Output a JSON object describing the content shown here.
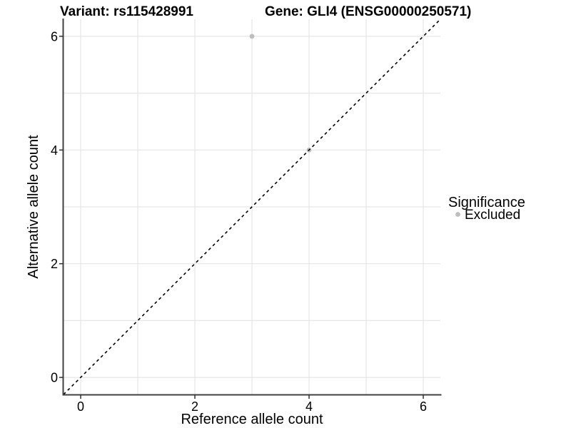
{
  "chart_data": {
    "type": "scatter",
    "title_left": "Variant: rs115428991",
    "title_right": "Gene: GLI4 (ENSG00000250571)",
    "xlabel": "Reference allele count",
    "ylabel": "Alternative allele count",
    "xlim": [
      -0.3,
      6.3
    ],
    "ylim": [
      -0.3,
      6.3
    ],
    "x_ticks": [
      0,
      2,
      4,
      6
    ],
    "y_ticks": [
      0,
      2,
      4,
      6
    ],
    "x_gridlines": [
      0,
      1,
      2,
      3,
      4,
      5,
      6
    ],
    "y_gridlines": [
      0,
      1,
      2,
      3,
      4,
      5,
      6
    ],
    "grid": "on",
    "points": [
      {
        "x": 3,
        "y": 6,
        "significance": "Excluded"
      },
      {
        "x": 4,
        "y": 4,
        "significance": "Excluded"
      }
    ],
    "reference_line": {
      "slope": 1,
      "intercept": 0,
      "style": "dashed",
      "color": "#000000"
    },
    "legend": {
      "title": "Significance",
      "position": "right",
      "entries": [
        {
          "label": "Excluded",
          "color": "#bebebe"
        }
      ]
    },
    "colors": {
      "point": "#bebebe",
      "gridline": "#e6e6e6",
      "axis": "#404040",
      "tick": "#333333",
      "text": "#000000",
      "background": "#ffffff"
    }
  }
}
